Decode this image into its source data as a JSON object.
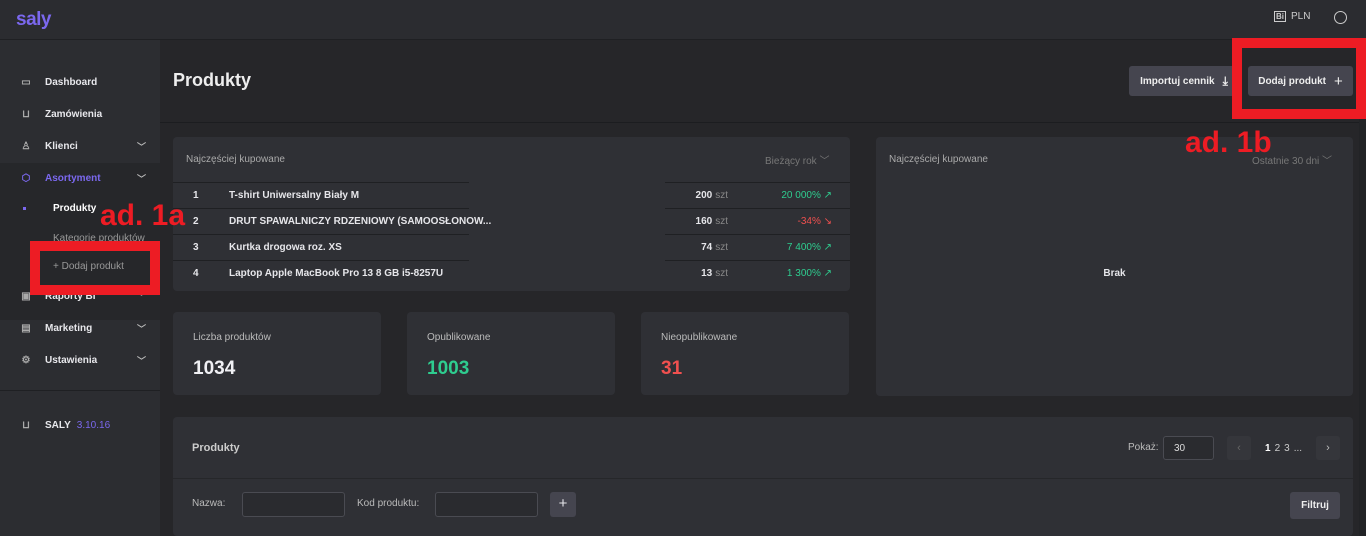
{
  "topbar": {
    "logo": "saly",
    "currency": "PLN",
    "currency_icon": "bi-report-icon",
    "user_icon": "user-circle-icon"
  },
  "sidebar": {
    "items": [
      {
        "label": "Dashboard",
        "icon": "monitor-icon"
      },
      {
        "label": "Zamówienia",
        "icon": "cart-icon"
      },
      {
        "label": "Klienci",
        "icon": "person-icon"
      },
      {
        "label": "Asortyment",
        "icon": "box-icon"
      },
      {
        "label": "Raporty BI",
        "icon": "bi-icon"
      },
      {
        "label": "Marketing",
        "icon": "newspaper-icon"
      },
      {
        "label": "Ustawienia",
        "icon": "gear-icon"
      }
    ],
    "sub_items": [
      "Produkty",
      "Kategorie produktów",
      "+ Dodaj produkt"
    ],
    "footer": {
      "name": "SALY",
      "version": "3.10.16"
    }
  },
  "header": {
    "title": "Produkty",
    "import_label": "Importuj cennik",
    "add_label": "Dodaj produkt"
  },
  "top_products": {
    "title": "Najczęściej kupowane",
    "period": "Bieżący rok",
    "unit": "szt",
    "rows": [
      {
        "n": "1",
        "name": "T-shirt Uniwersalny Biały M",
        "qty": "200",
        "change": "20 000% ↗",
        "trend": "up"
      },
      {
        "n": "2",
        "name": "DRUT SPAWALNICZY RDZENIOWY (SAMOOSŁONOW...",
        "qty": "160",
        "change": "-34% ↘",
        "trend": "down"
      },
      {
        "n": "3",
        "name": "Kurtka drogowa roz. XS",
        "qty": "74",
        "change": "7 400% ↗",
        "trend": "up"
      },
      {
        "n": "4",
        "name": "Laptop Apple MacBook Pro 13 8 GB i5-8257U",
        "qty": "13",
        "change": "1 300% ↗",
        "trend": "up"
      }
    ]
  },
  "top_products_30": {
    "title": "Najczęściej kupowane",
    "period": "Ostatnie 30 dni",
    "empty": "Brak"
  },
  "stats": [
    {
      "label": "Liczba produktów",
      "value": "1034",
      "color": "#f0f0f4"
    },
    {
      "label": "Opublikowane",
      "value": "1003",
      "color": "#2ecc8f"
    },
    {
      "label": "Nieopublikowane",
      "value": "31",
      "color": "#f0504f"
    }
  ],
  "products": {
    "title": "Produkty",
    "show_label": "Pokaż:",
    "per_page": "30",
    "pages": [
      "1",
      "2",
      "3",
      "..."
    ],
    "name_label": "Nazwa:",
    "code_label": "Kod produktu:",
    "name_value": "",
    "code_value": "",
    "filter_label": "Filtruj"
  },
  "annotations": {
    "a": "ad. 1a",
    "b": "ad. 1b"
  },
  "colors": {
    "accent": "#7b68ee",
    "up": "#2ecc8f",
    "down": "#f0504f",
    "annotation": "#ed1c24"
  }
}
